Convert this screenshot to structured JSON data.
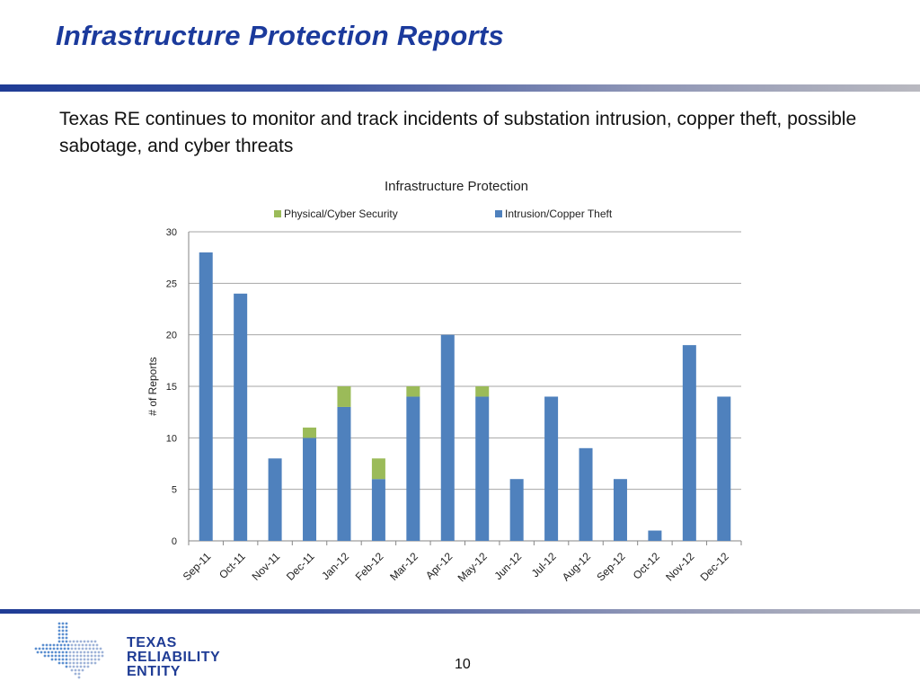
{
  "slide": {
    "title": "Infrastructure Protection Reports",
    "body": "Texas RE continues to monitor and track incidents of substation intrusion, copper theft, possible sabotage, and cyber threats",
    "page_number": "10"
  },
  "logo": {
    "line1": "TEXAS",
    "line2": "RELIABILITY",
    "line3": "ENTITY"
  },
  "colors": {
    "title": "#1b3a9c",
    "physical_cyber": "#9bbb59",
    "intrusion_copper": "#4f81bd",
    "logo": "#1f3c95"
  },
  "chart_data": {
    "type": "bar",
    "stacked": true,
    "title": "Infrastructure Protection",
    "xlabel": "",
    "ylabel": "# of Reports",
    "ylim": [
      0,
      30
    ],
    "yticks": [
      0,
      5,
      10,
      15,
      20,
      25,
      30
    ],
    "grid": true,
    "legend_position": "top",
    "categories": [
      "Sep-11",
      "Oct-11",
      "Nov-11",
      "Dec-11",
      "Jan-12",
      "Feb-12",
      "Mar-12",
      "Apr-12",
      "May-12",
      "Jun-12",
      "Jul-12",
      "Aug-12",
      "Sep-12",
      "Oct-12",
      "Nov-12",
      "Dec-12"
    ],
    "series": [
      {
        "name": "Intrusion/Copper Theft",
        "color": "#4f81bd",
        "values": [
          28,
          24,
          8,
          10,
          13,
          6,
          14,
          20,
          14,
          6,
          14,
          9,
          6,
          1,
          19,
          14
        ]
      },
      {
        "name": "Physical/Cyber Security",
        "color": "#9bbb59",
        "values": [
          0,
          0,
          0,
          1,
          2,
          2,
          1,
          0,
          1,
          0,
          0,
          0,
          0,
          0,
          0,
          0
        ]
      }
    ],
    "legend_order": [
      "Physical/Cyber Security",
      "Intrusion/Copper Theft"
    ]
  }
}
